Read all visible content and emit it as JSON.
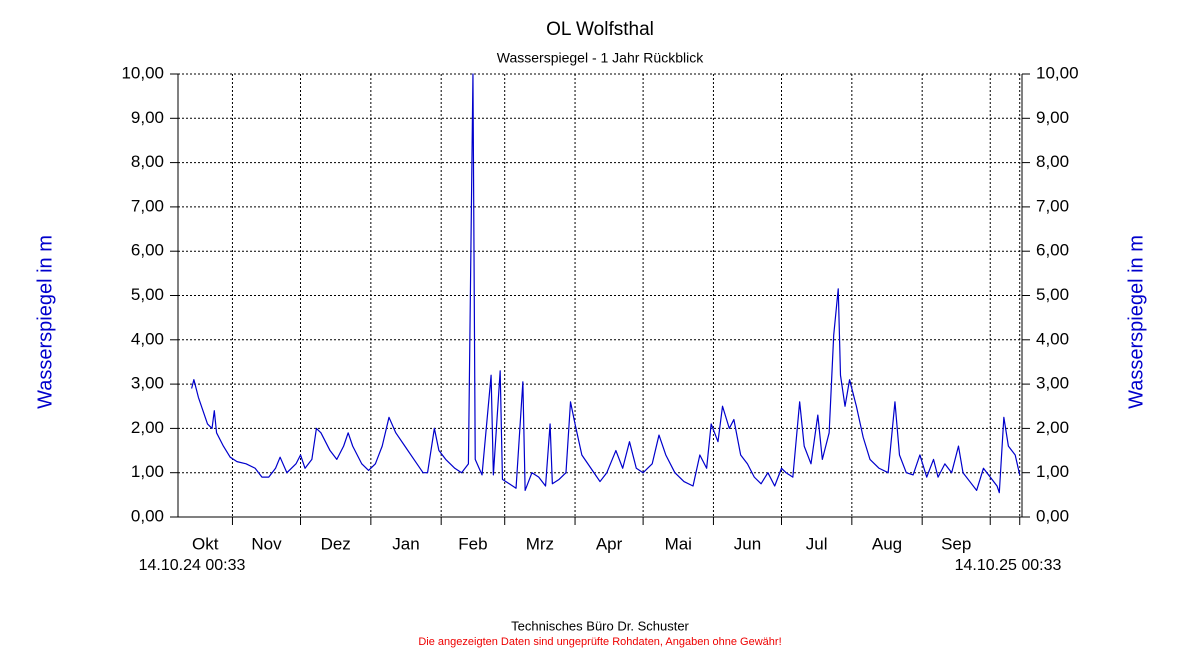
{
  "chart_data": {
    "type": "line",
    "title": "OL Wolfsthal",
    "subtitle": "Wasserspiegel - 1 Jahr Rückblick",
    "y_label": "Wasserspiegel in m",
    "y2_label": "Wasserspiegel in m",
    "x_start_label": "14.10.24 00:33",
    "x_end_label": "14.10.25 00:33",
    "footer": "Technisches Büro Dr. Schuster",
    "disclaimer": "Die angezeigten Daten sind ungeprüfte Rohdaten, Angaben ohne Gewähr!",
    "grid": true,
    "xlim": [
      "2024-10-08",
      "2025-10-15"
    ],
    "xticks": [
      {
        "value": "2024-10-01",
        "label": "Okt"
      },
      {
        "value": "2024-11-01",
        "label": "Nov"
      },
      {
        "value": "2024-12-01",
        "label": "Dez"
      },
      {
        "value": "2025-01-01",
        "label": "Jan"
      },
      {
        "value": "2025-02-01",
        "label": "Feb"
      },
      {
        "value": "2025-03-01",
        "label": "Mrz"
      },
      {
        "value": "2025-04-01",
        "label": "Apr"
      },
      {
        "value": "2025-05-01",
        "label": "Mai"
      },
      {
        "value": "2025-06-01",
        "label": "Jun"
      },
      {
        "value": "2025-07-01",
        "label": "Jul"
      },
      {
        "value": "2025-08-01",
        "label": "Aug"
      },
      {
        "value": "2025-09-01",
        "label": "Sep"
      },
      {
        "value": "2025-10-01",
        "label": null
      },
      {
        "value": "2025-10-14",
        "label": null
      }
    ],
    "ylim": [
      0,
      10
    ],
    "yticks": [
      {
        "value": 0,
        "label": "0,00"
      },
      {
        "value": 1,
        "label": "1,00"
      },
      {
        "value": 2,
        "label": "2,00"
      },
      {
        "value": 3,
        "label": "3,00"
      },
      {
        "value": 4,
        "label": "4,00"
      },
      {
        "value": 5,
        "label": "5,00"
      },
      {
        "value": 6,
        "label": "6,00"
      },
      {
        "value": 7,
        "label": "7,00"
      },
      {
        "value": 8,
        "label": "8,00"
      },
      {
        "value": 9,
        "label": "9,00"
      },
      {
        "value": 10,
        "label": "10,00"
      }
    ],
    "y2lim": [
      0,
      10
    ],
    "y2ticks": [
      {
        "value": 0,
        "label": "0,00"
      },
      {
        "value": 1,
        "label": "1,00"
      },
      {
        "value": 2,
        "label": "2,00"
      },
      {
        "value": 3,
        "label": "3,00"
      },
      {
        "value": 4,
        "label": "4,00"
      },
      {
        "value": 5,
        "label": "5,00"
      },
      {
        "value": 6,
        "label": "6,00"
      },
      {
        "value": 7,
        "label": "7,00"
      },
      {
        "value": 8,
        "label": "8,00"
      },
      {
        "value": 9,
        "label": "9,00"
      },
      {
        "value": 10,
        "label": "10,00"
      }
    ],
    "x": [
      "2024-10-14",
      "2024-10-15",
      "2024-10-17",
      "2024-10-19",
      "2024-10-21",
      "2024-10-23",
      "2024-10-24",
      "2024-10-25",
      "2024-10-28",
      "2024-10-31",
      "2024-11-03",
      "2024-11-07",
      "2024-11-11",
      "2024-11-14",
      "2024-11-17",
      "2024-11-20",
      "2024-11-22",
      "2024-11-25",
      "2024-11-29",
      "2024-12-01",
      "2024-12-03",
      "2024-12-06",
      "2024-12-08",
      "2024-12-10",
      "2024-12-14",
      "2024-12-17",
      "2024-12-20",
      "2024-12-22",
      "2024-12-24",
      "2024-12-28",
      "2024-12-31",
      "2025-01-03",
      "2025-01-06",
      "2025-01-09",
      "2025-01-12",
      "2025-01-16",
      "2025-01-20",
      "2025-01-24",
      "2025-01-26",
      "2025-01-29",
      "2025-01-31",
      "2025-02-03",
      "2025-02-07",
      "2025-02-10",
      "2025-02-13",
      "2025-02-15",
      "2025-02-16",
      "2025-02-19",
      "2025-02-23",
      "2025-02-24",
      "2025-02-27",
      "2025-02-28",
      "2025-03-03",
      "2025-03-06",
      "2025-03-09",
      "2025-03-10",
      "2025-03-13",
      "2025-03-16",
      "2025-03-19",
      "2025-03-21",
      "2025-03-22",
      "2025-03-25",
      "2025-03-28",
      "2025-03-30",
      "2025-04-01",
      "2025-04-04",
      "2025-04-08",
      "2025-04-12",
      "2025-04-15",
      "2025-04-19",
      "2025-04-22",
      "2025-04-25",
      "2025-04-28",
      "2025-05-01",
      "2025-05-05",
      "2025-05-08",
      "2025-05-11",
      "2025-05-15",
      "2025-05-19",
      "2025-05-23",
      "2025-05-26",
      "2025-05-29",
      "2025-05-31",
      "2025-06-03",
      "2025-06-05",
      "2025-06-08",
      "2025-06-10",
      "2025-06-13",
      "2025-06-16",
      "2025-06-19",
      "2025-06-22",
      "2025-06-25",
      "2025-06-28",
      "2025-07-01",
      "2025-07-03",
      "2025-07-06",
      "2025-07-09",
      "2025-07-11",
      "2025-07-14",
      "2025-07-17",
      "2025-07-19",
      "2025-07-22",
      "2025-07-24",
      "2025-07-26",
      "2025-07-27",
      "2025-07-29",
      "2025-07-31",
      "2025-08-03",
      "2025-08-06",
      "2025-08-09",
      "2025-08-13",
      "2025-08-17",
      "2025-08-20",
      "2025-08-22",
      "2025-08-25",
      "2025-08-28",
      "2025-08-31",
      "2025-09-03",
      "2025-09-06",
      "2025-09-08",
      "2025-09-11",
      "2025-09-14",
      "2025-09-17",
      "2025-09-19",
      "2025-09-22",
      "2025-09-25",
      "2025-09-28",
      "2025-10-01",
      "2025-10-04",
      "2025-10-05",
      "2025-10-07",
      "2025-10-09",
      "2025-10-12",
      "2025-10-14"
    ],
    "series": [
      {
        "color": "#0000cc",
        "values": [
          2.9,
          3.1,
          2.7,
          2.4,
          2.1,
          2.0,
          2.4,
          1.9,
          1.6,
          1.35,
          1.25,
          1.2,
          1.1,
          0.9,
          0.9,
          1.1,
          1.35,
          1.0,
          1.2,
          1.4,
          1.1,
          1.3,
          2.0,
          1.9,
          1.5,
          1.3,
          1.6,
          1.9,
          1.6,
          1.2,
          1.05,
          1.2,
          1.6,
          2.25,
          1.9,
          1.6,
          1.3,
          1.0,
          1.0,
          2.0,
          1.5,
          1.3,
          1.1,
          1.0,
          1.2,
          10.0,
          1.3,
          0.95,
          3.2,
          0.95,
          3.3,
          0.85,
          0.75,
          0.65,
          3.05,
          0.6,
          1.0,
          0.9,
          0.7,
          2.1,
          0.75,
          0.85,
          1.0,
          2.6,
          2.1,
          1.4,
          1.1,
          0.8,
          1.0,
          1.5,
          1.1,
          1.7,
          1.1,
          1.0,
          1.2,
          1.85,
          1.4,
          1.0,
          0.8,
          0.7,
          1.4,
          1.1,
          2.1,
          1.7,
          2.5,
          2.0,
          2.2,
          1.4,
          1.2,
          0.9,
          0.75,
          1.0,
          0.7,
          1.1,
          1.0,
          0.9,
          2.6,
          1.6,
          1.2,
          2.3,
          1.3,
          1.9,
          4.1,
          5.15,
          3.2,
          2.5,
          3.1,
          2.5,
          1.8,
          1.3,
          1.1,
          1.0,
          2.6,
          1.4,
          1.0,
          0.95,
          1.4,
          0.9,
          1.3,
          0.9,
          1.2,
          1.0,
          1.6,
          1.0,
          0.8,
          0.6,
          1.1,
          0.9,
          0.7,
          0.55,
          2.25,
          1.6,
          1.4,
          0.95
        ]
      }
    ]
  }
}
